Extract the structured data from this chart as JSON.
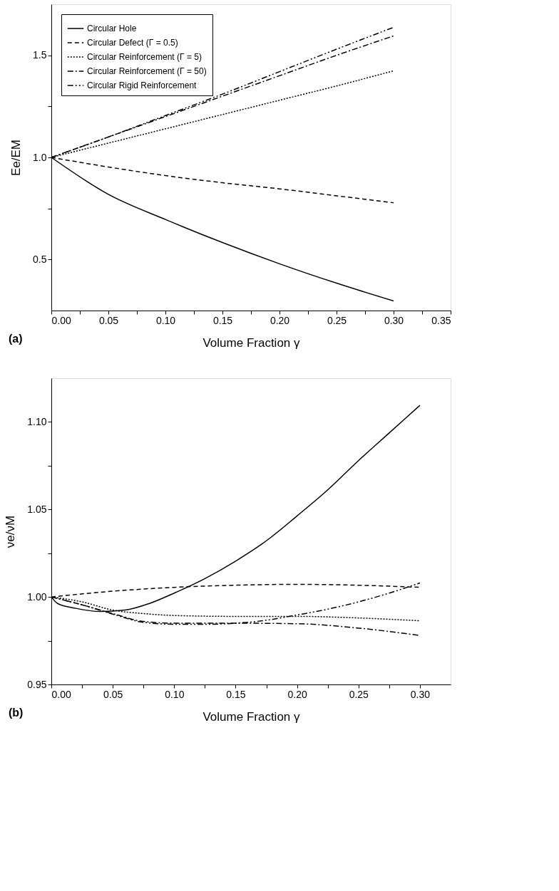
{
  "chart_data": [
    {
      "type": "line",
      "xlabel": "Volume Fraction γ",
      "ylabel": "Ee/EM",
      "annotations": [
        "(a)"
      ],
      "legend": "top left",
      "grid": false,
      "xlim": [
        0,
        0.35
      ],
      "ylim": [
        0.25,
        1.75
      ],
      "xticks": [
        {
          "value": 0,
          "label": "0.00"
        },
        {
          "value": 0.025,
          "label": null
        },
        {
          "value": 0.05,
          "label": "0.05"
        },
        {
          "value": 0.075,
          "label": null
        },
        {
          "value": 0.1,
          "label": "0.10"
        },
        {
          "value": 0.125,
          "label": null
        },
        {
          "value": 0.15,
          "label": "0.15"
        },
        {
          "value": 0.175,
          "label": null
        },
        {
          "value": 0.2,
          "label": "0.20"
        },
        {
          "value": 0.225,
          "label": null
        },
        {
          "value": 0.25,
          "label": "0.25"
        },
        {
          "value": 0.275,
          "label": null
        },
        {
          "value": 0.3,
          "label": "0.30"
        },
        {
          "value": 0.325,
          "label": null
        },
        {
          "value": 0.35,
          "label": "0.35"
        }
      ],
      "yticks": [
        {
          "value": 0.5,
          "label": "0.5"
        },
        {
          "value": 0.75,
          "label": null
        },
        {
          "value": 1.0,
          "label": "1.0"
        },
        {
          "value": 1.25,
          "label": null
        },
        {
          "value": 1.5,
          "label": "1.5"
        }
      ],
      "x": [
        0,
        0.05,
        0.1,
        0.15,
        0.2,
        0.25,
        0.3
      ],
      "series": [
        {
          "name": "Circular Hole",
          "color": "#000000",
          "line_style": "solid",
          "values": [
            1.0,
            0.819,
            0.696,
            0.583,
            0.479,
            0.384,
            0.297
          ]
        },
        {
          "name": "Circular Defect (Γ = 0.5)",
          "color": "#000000",
          "line_style": "dashed",
          "values": [
            1.0,
            0.953,
            0.911,
            0.876,
            0.846,
            0.812,
            0.778
          ]
        },
        {
          "name": "Circular Reinforcement (Γ = 5)",
          "color": "#000000",
          "line_style": "dotted",
          "values": [
            1.0,
            1.07,
            1.14,
            1.21,
            1.28,
            1.35,
            1.424
          ]
        },
        {
          "name": "Circular Reinforcement (Γ = 50)",
          "color": "#000000",
          "line_style": "dashdot",
          "values": [
            1.0,
            1.1,
            1.2,
            1.3,
            1.4,
            1.5,
            1.595
          ]
        },
        {
          "name": "Circular Rigid Reinforcement",
          "color": "#000000",
          "line_style": "dashdotdot",
          "values": [
            1.0,
            1.1,
            1.205,
            1.31,
            1.42,
            1.53,
            1.637
          ]
        }
      ]
    },
    {
      "type": "line",
      "xlabel": "Volume Fraction γ",
      "ylabel": "νe/νM",
      "annotations": [
        "(b)"
      ],
      "legend": "top left",
      "grid": false,
      "xlim": [
        0,
        0.325
      ],
      "ylim": [
        0.95,
        1.125
      ],
      "xticks": [
        {
          "value": 0,
          "label": "0.00"
        },
        {
          "value": 0.025,
          "label": null
        },
        {
          "value": 0.05,
          "label": "0.05"
        },
        {
          "value": 0.075,
          "label": null
        },
        {
          "value": 0.1,
          "label": "0.10"
        },
        {
          "value": 0.125,
          "label": null
        },
        {
          "value": 0.15,
          "label": "0.15"
        },
        {
          "value": 0.175,
          "label": null
        },
        {
          "value": 0.2,
          "label": "0.20"
        },
        {
          "value": 0.225,
          "label": null
        },
        {
          "value": 0.25,
          "label": "0.25"
        },
        {
          "value": 0.275,
          "label": null
        },
        {
          "value": 0.3,
          "label": "0.30"
        }
      ],
      "yticks": [
        {
          "value": 0.95,
          "label": "0.95"
        },
        {
          "value": 0.975,
          "label": null
        },
        {
          "value": 1.0,
          "label": "1.00"
        },
        {
          "value": 1.025,
          "label": null
        },
        {
          "value": 1.05,
          "label": "1.05"
        },
        {
          "value": 1.075,
          "label": null
        },
        {
          "value": 1.1,
          "label": "1.10"
        }
      ],
      "series": [
        {
          "name": "Circular Hole",
          "color": "#000000",
          "line_style": "solid",
          "x": [
            0,
            0.005,
            0.02,
            0.04,
            0.06,
            0.08,
            0.1,
            0.125,
            0.15,
            0.175,
            0.2,
            0.225,
            0.25,
            0.275,
            0.3
          ],
          "values": [
            1.0,
            0.9963,
            0.9935,
            0.9917,
            0.9925,
            0.9963,
            1.0022,
            1.0105,
            1.0205,
            1.0321,
            1.0463,
            1.0612,
            1.0779,
            1.0937,
            1.1095
          ]
        },
        {
          "name": "Circular Defect (Γ = 0.5)",
          "color": "#000000",
          "line_style": "dashed",
          "x": [
            0,
            0.05,
            0.1,
            0.15,
            0.2,
            0.25,
            0.3
          ],
          "values": [
            1.0,
            1.0033,
            1.0055,
            1.0067,
            1.0072,
            1.0067,
            1.0055
          ]
        },
        {
          "name": "Circular Reinforcement (Γ = 5)",
          "color": "#000000",
          "line_style": "dotted",
          "x": [
            0,
            0.025,
            0.05,
            0.075,
            0.1,
            0.15,
            0.2,
            0.25,
            0.3
          ],
          "values": [
            1.0,
            0.9972,
            0.9925,
            0.9905,
            0.9894,
            0.9889,
            0.9889,
            0.988,
            0.9864
          ]
        },
        {
          "name": "Circular Reinforcement (Γ = 50)",
          "color": "#000000",
          "line_style": "dashdot",
          "x": [
            0,
            0.025,
            0.05,
            0.075,
            0.1,
            0.15,
            0.2,
            0.25,
            0.3
          ],
          "values": [
            1.0,
            0.9955,
            0.9905,
            0.986,
            0.985,
            0.985,
            0.9847,
            0.9822,
            0.978
          ]
        },
        {
          "name": "Circular Rigid Reinforcement",
          "color": "#000000",
          "line_style": "dashdotdot",
          "x": [
            0,
            0.025,
            0.05,
            0.075,
            0.1,
            0.125,
            0.15,
            0.175,
            0.2,
            0.225,
            0.25,
            0.275,
            0.3
          ],
          "values": [
            1.0,
            0.9955,
            0.9902,
            0.9855,
            0.9844,
            0.9844,
            0.985,
            0.9867,
            0.9897,
            0.993,
            0.9972,
            1.0022,
            1.008
          ]
        }
      ]
    }
  ]
}
